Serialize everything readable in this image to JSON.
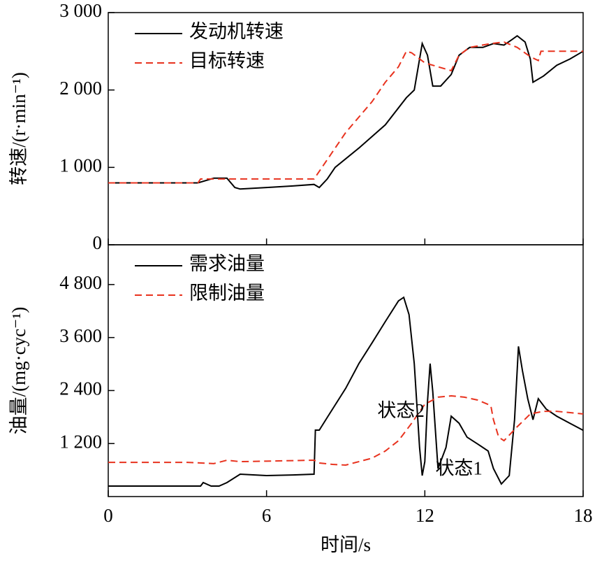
{
  "chart_data": [
    {
      "type": "line",
      "y_label": "转速/(r·min⁻¹)",
      "xlim": [
        0,
        18
      ],
      "xticks": [
        0,
        6,
        12,
        18
      ],
      "ylim": [
        0,
        3000
      ],
      "yticks": [
        0,
        {
          "value": 1000,
          "label": "1 000"
        },
        {
          "value": 2000,
          "label": "2 000"
        },
        {
          "value": 3000,
          "label": "3 000"
        }
      ],
      "legend": "upper left",
      "series": [
        {
          "name": "发动机转速",
          "color": "#000000",
          "dash": "solid",
          "x": [
            0,
            3.4,
            4.0,
            4.5,
            4.8,
            5,
            6,
            7,
            7.8,
            8.0,
            8.3,
            8.6,
            9.5,
            10.5,
            11.3,
            11.6,
            11.9,
            12.1,
            12.3,
            12.6,
            13.0,
            13.3,
            13.7,
            14.2,
            14.6,
            15.0,
            15.3,
            15.5,
            15.8,
            16.0,
            16.1,
            16.5,
            17,
            17.5,
            18
          ],
          "values": [
            800,
            800,
            860,
            860,
            740,
            720,
            740,
            760,
            780,
            740,
            850,
            1000,
            1250,
            1550,
            1900,
            2000,
            2600,
            2450,
            2050,
            2050,
            2200,
            2450,
            2550,
            2550,
            2600,
            2580,
            2650,
            2700,
            2620,
            2400,
            2100,
            2180,
            2320,
            2400,
            2500
          ]
        },
        {
          "name": "目标转速",
          "color": "#e8321e",
          "dash": "dashed",
          "x": [
            0,
            3.4,
            3.5,
            7.8,
            8.3,
            9,
            10,
            10.5,
            11,
            11.3,
            11.5,
            12,
            12.5,
            13,
            13.3,
            13.7,
            14.5,
            15,
            15.5,
            16,
            16.3,
            16.4,
            18
          ],
          "values": [
            800,
            800,
            850,
            850,
            1100,
            1450,
            1850,
            2100,
            2300,
            2500,
            2480,
            2350,
            2300,
            2250,
            2450,
            2550,
            2600,
            2620,
            2550,
            2430,
            2380,
            2500,
            2500
          ]
        }
      ]
    },
    {
      "type": "line",
      "x_label": "时间/s",
      "y_label": "油量/(mg·cyc⁻¹)",
      "xlim": [
        0,
        18
      ],
      "xticks": [
        0,
        6,
        12,
        18
      ],
      "ylim": [
        0,
        5700
      ],
      "yticks": [
        {
          "value": 1200,
          "label": "1 200"
        },
        {
          "value": 2400,
          "label": "2 400"
        },
        {
          "value": 3600,
          "label": "3 600"
        },
        {
          "value": 4800,
          "label": "4 800"
        }
      ],
      "legend": "upper left",
      "annotations": [
        {
          "text": "状态2",
          "x": 10.2,
          "y": 1900
        },
        {
          "text": "状态1",
          "x": 12.4,
          "y": 600
        }
      ],
      "series": [
        {
          "name": "需求油量",
          "color": "#000000",
          "dash": "solid",
          "x": [
            0,
            3.5,
            3.6,
            3.9,
            4.2,
            4.5,
            5,
            6,
            7,
            7.8,
            7.85,
            8,
            8.3,
            9,
            9.5,
            10,
            10.5,
            11,
            11.2,
            11.4,
            11.6,
            11.8,
            11.9,
            12.0,
            12.1,
            12.2,
            12.3,
            12.5,
            12.8,
            13,
            13.3,
            13.6,
            14,
            14.4,
            14.6,
            14.9,
            15.2,
            15.4,
            15.55,
            15.7,
            15.9,
            16.1,
            16.3,
            16.6,
            17,
            17.5,
            18
          ],
          "values": [
            237,
            237,
            317,
            237,
            237,
            317,
            507,
            475,
            490,
            507,
            1504,
            1504,
            1790,
            2450,
            3010,
            3480,
            3960,
            4430,
            4510,
            4120,
            3010,
            1110,
            475,
            790,
            2140,
            3010,
            2375,
            633,
            1110,
            1820,
            1660,
            1345,
            1190,
            1030,
            633,
            285,
            475,
            1740,
            3400,
            2850,
            2215,
            1740,
            2215,
            1980,
            1820,
            1660,
            1500
          ]
        },
        {
          "name": "限制油量",
          "color": "#e8321e",
          "dash": "dashed",
          "x": [
            0,
            3,
            4,
            4.5,
            5,
            7.8,
            8,
            8.5,
            9,
            10,
            10.5,
            11,
            11.5,
            12,
            12.5,
            13,
            13.5,
            14,
            14.5,
            14.6,
            14.8,
            15,
            15.5,
            16,
            16.5,
            17,
            18
          ],
          "values": [
            775,
            775,
            745,
            823,
            790,
            823,
            760,
            728,
            712,
            870,
            1030,
            1265,
            1660,
            2090,
            2250,
            2280,
            2250,
            2185,
            2060,
            1740,
            1345,
            1265,
            1580,
            1870,
            1930,
            1930,
            1870
          ]
        }
      ]
    }
  ]
}
